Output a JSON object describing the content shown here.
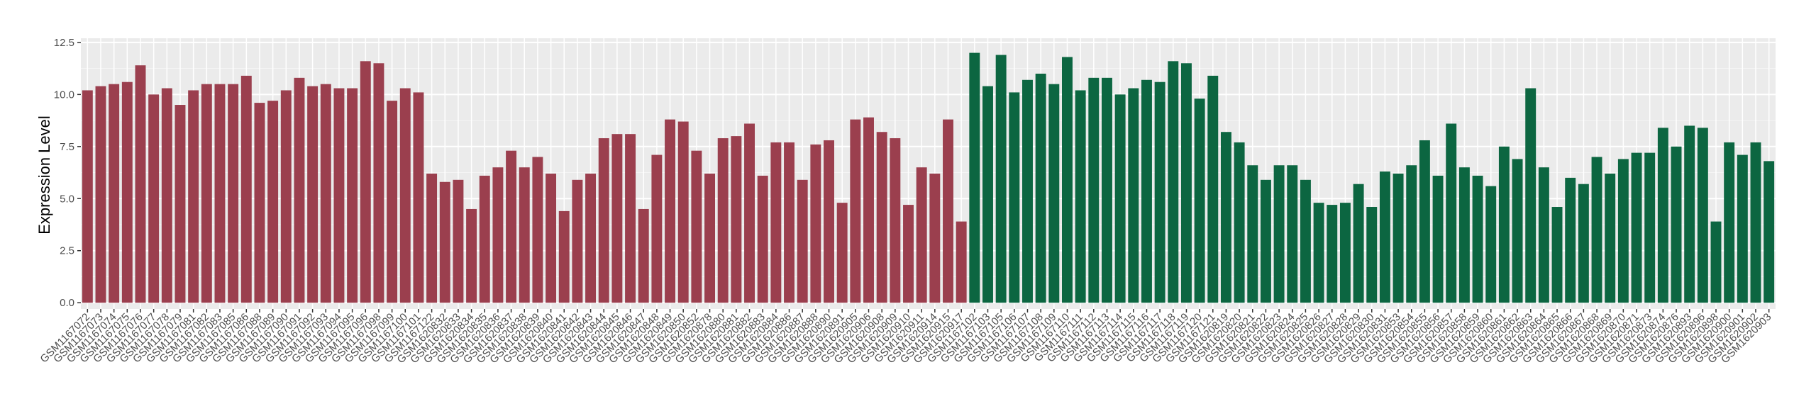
{
  "chart_data": {
    "type": "bar",
    "y_label": "Expression Level",
    "categories": [
      "GSM1167072",
      "GSM1167073",
      "GSM1167074",
      "GSM1167075",
      "GSM1167076",
      "GSM1167077",
      "GSM1167078",
      "GSM1167079",
      "GSM1167081",
      "GSM1167082",
      "GSM1167083",
      "GSM1167085",
      "GSM1167086",
      "GSM1167088",
      "GSM1167089",
      "GSM1167090",
      "GSM1167091",
      "GSM1167092",
      "GSM1167093",
      "GSM1167094",
      "GSM1167095",
      "GSM1167096",
      "GSM1167098",
      "GSM1167099",
      "GSM1167100",
      "GSM1167101",
      "GSM1167122",
      "GSM1620832",
      "GSM1620833",
      "GSM1620834",
      "GSM1620835",
      "GSM1620836",
      "GSM1620837",
      "GSM1620838",
      "GSM1620839",
      "GSM1620840",
      "GSM1620841",
      "GSM1620842",
      "GSM1620843",
      "GSM1620844",
      "GSM1620845",
      "GSM1620846",
      "GSM1620847",
      "GSM1620848",
      "GSM1620849",
      "GSM1620850",
      "GSM1620852",
      "GSM1620878",
      "GSM1620880",
      "GSM1620881",
      "GSM1620882",
      "GSM1620883",
      "GSM1620884",
      "GSM1620886",
      "GSM1620887",
      "GSM1620888",
      "GSM1620890",
      "GSM1620891",
      "GSM1620905",
      "GSM1620906",
      "GSM1620908",
      "GSM1620909",
      "GSM1620910",
      "GSM1620911",
      "GSM1620914",
      "GSM1620915",
      "GSM1620917",
      "GSM1167102",
      "GSM1167103",
      "GSM1167105",
      "GSM1167106",
      "GSM1167107",
      "GSM1167108",
      "GSM1167109",
      "GSM1167110",
      "GSM1167111",
      "GSM1167112",
      "GSM1167113",
      "GSM1167114",
      "GSM1167115",
      "GSM1167116",
      "GSM1167117",
      "GSM1167118",
      "GSM1167119",
      "GSM1167120",
      "GSM1167121",
      "GSM1620819",
      "GSM1620820",
      "GSM1620821",
      "GSM1620822",
      "GSM1620823",
      "GSM1620824",
      "GSM1620825",
      "GSM1620826",
      "GSM1620827",
      "GSM1620828",
      "GSM1620829",
      "GSM1620830",
      "GSM1620831",
      "GSM1620853",
      "GSM1620854",
      "GSM1620855",
      "GSM1620856",
      "GSM1620857",
      "GSM1620858",
      "GSM1620859",
      "GSM1620860",
      "GSM1620861",
      "GSM1620862",
      "GSM1620863",
      "GSM1620864",
      "GSM1620865",
      "GSM1620866",
      "GSM1620867",
      "GSM1620868",
      "GSM1620869",
      "GSM1620870",
      "GSM1620871",
      "GSM1620873",
      "GSM1620874",
      "GSM1620876",
      "GSM1620893",
      "GSM1620896",
      "GSM1620898",
      "GSM1620900",
      "GSM1620901",
      "GSM1620902",
      "GSM1620903"
    ],
    "values": [
      10.2,
      10.4,
      10.5,
      10.6,
      11.4,
      10.0,
      10.3,
      9.5,
      10.2,
      10.5,
      10.5,
      10.5,
      10.9,
      9.6,
      9.7,
      10.2,
      10.8,
      10.4,
      10.5,
      10.3,
      10.3,
      11.6,
      11.5,
      9.7,
      10.3,
      10.1,
      6.2,
      5.8,
      5.9,
      4.5,
      6.1,
      6.5,
      7.3,
      6.5,
      7.0,
      6.2,
      4.4,
      5.9,
      6.2,
      7.9,
      8.1,
      8.1,
      4.5,
      7.1,
      8.8,
      8.7,
      7.3,
      6.2,
      7.9,
      8.0,
      8.6,
      6.1,
      7.7,
      7.7,
      5.9,
      7.6,
      7.8,
      4.8,
      8.8,
      8.9,
      8.2,
      7.9,
      4.7,
      6.5,
      6.2,
      8.8,
      3.9,
      12.0,
      10.4,
      11.9,
      10.1,
      10.7,
      11.0,
      10.5,
      11.8,
      10.2,
      10.8,
      10.8,
      10.0,
      10.3,
      10.7,
      10.6,
      11.6,
      11.5,
      9.8,
      10.9,
      8.2,
      7.7,
      6.6,
      5.9,
      6.6,
      6.6,
      5.9,
      4.8,
      4.7,
      4.8,
      5.7,
      4.6,
      6.3,
      6.2,
      6.6,
      7.8,
      6.1,
      8.6,
      6.5,
      6.1,
      5.6,
      7.5,
      6.9,
      10.3,
      6.5,
      4.6,
      6.0,
      5.7,
      7.0,
      6.2,
      6.9,
      7.2,
      7.2,
      8.4,
      7.5,
      8.5,
      8.4,
      3.9,
      7.7,
      7.1,
      7.7,
      6.8
    ],
    "bar_colors": [
      "#9b3f4e",
      "#9b3f4e",
      "#9b3f4e",
      "#9b3f4e",
      "#9b3f4e",
      "#9b3f4e",
      "#9b3f4e",
      "#9b3f4e",
      "#9b3f4e",
      "#9b3f4e",
      "#9b3f4e",
      "#9b3f4e",
      "#9b3f4e",
      "#9b3f4e",
      "#9b3f4e",
      "#9b3f4e",
      "#9b3f4e",
      "#9b3f4e",
      "#9b3f4e",
      "#9b3f4e",
      "#9b3f4e",
      "#9b3f4e",
      "#9b3f4e",
      "#9b3f4e",
      "#9b3f4e",
      "#9b3f4e",
      "#9b3f4e",
      "#9b3f4e",
      "#9b3f4e",
      "#9b3f4e",
      "#9b3f4e",
      "#9b3f4e",
      "#9b3f4e",
      "#9b3f4e",
      "#9b3f4e",
      "#9b3f4e",
      "#9b3f4e",
      "#9b3f4e",
      "#9b3f4e",
      "#9b3f4e",
      "#9b3f4e",
      "#9b3f4e",
      "#9b3f4e",
      "#9b3f4e",
      "#9b3f4e",
      "#9b3f4e",
      "#9b3f4e",
      "#9b3f4e",
      "#9b3f4e",
      "#9b3f4e",
      "#9b3f4e",
      "#9b3f4e",
      "#9b3f4e",
      "#9b3f4e",
      "#9b3f4e",
      "#9b3f4e",
      "#9b3f4e",
      "#9b3f4e",
      "#9b3f4e",
      "#9b3f4e",
      "#9b3f4e",
      "#9b3f4e",
      "#9b3f4e",
      "#9b3f4e",
      "#9b3f4e",
      "#9b3f4e",
      "#9b3f4e",
      "#0c6641",
      "#0c6641",
      "#0c6641",
      "#0c6641",
      "#0c6641",
      "#0c6641",
      "#0c6641",
      "#0c6641",
      "#0c6641",
      "#0c6641",
      "#0c6641",
      "#0c6641",
      "#0c6641",
      "#0c6641",
      "#0c6641",
      "#0c6641",
      "#0c6641",
      "#0c6641",
      "#0c6641",
      "#0c6641",
      "#0c6641",
      "#0c6641",
      "#0c6641",
      "#0c6641",
      "#0c6641",
      "#0c6641",
      "#0c6641",
      "#0c6641",
      "#0c6641",
      "#0c6641",
      "#0c6641",
      "#0c6641",
      "#0c6641",
      "#0c6641",
      "#0c6641",
      "#0c6641",
      "#0c6641",
      "#0c6641",
      "#0c6641",
      "#0c6641",
      "#0c6641",
      "#0c6641",
      "#0c6641",
      "#0c6641",
      "#0c6641",
      "#0c6641",
      "#0c6641",
      "#0c6641",
      "#0c6641",
      "#0c6641",
      "#0c6641",
      "#0c6641",
      "#0c6641",
      "#0c6641",
      "#0c6641",
      "#0c6641",
      "#0c6641",
      "#0c6641",
      "#0c6641",
      "#0c6641",
      "#0c6641",
      "#0c6641"
    ],
    "ylim": [
      -0.3,
      12.7
    ],
    "yticks": [
      0.0,
      2.5,
      5.0,
      7.5,
      10.0,
      12.5
    ],
    "ytick_labels": [
      "0.0",
      "2.5",
      "5.0",
      "7.5",
      "10.0",
      "12.5"
    ],
    "grid": true
  }
}
